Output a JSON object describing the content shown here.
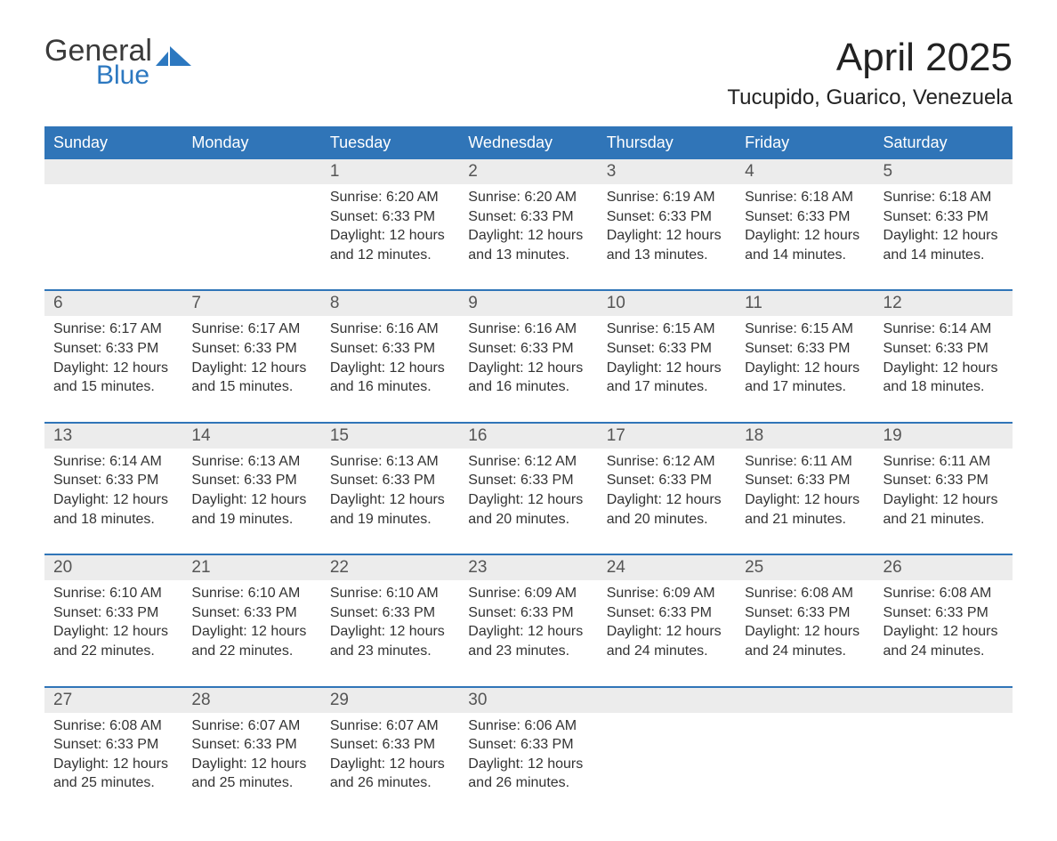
{
  "logo": {
    "top_text": "General",
    "bottom_text": "Blue",
    "icon_color": "#2c78c0"
  },
  "title": "April 2025",
  "location": "Tucupido, Guarico, Venezuela",
  "colors": {
    "header_bg": "#3075b8",
    "header_text": "#ffffff",
    "row_border": "#3075b8",
    "daynum_bg": "#ececec",
    "daynum_text": "#555555",
    "body_text": "#333333",
    "page_bg": "#ffffff"
  },
  "day_headers": [
    "Sunday",
    "Monday",
    "Tuesday",
    "Wednesday",
    "Thursday",
    "Friday",
    "Saturday"
  ],
  "weeks": [
    [
      {
        "blank": true
      },
      {
        "blank": true
      },
      {
        "day": "1",
        "sunrise": "Sunrise: 6:20 AM",
        "sunset": "Sunset: 6:33 PM",
        "daylight": "Daylight: 12 hours and 12 minutes."
      },
      {
        "day": "2",
        "sunrise": "Sunrise: 6:20 AM",
        "sunset": "Sunset: 6:33 PM",
        "daylight": "Daylight: 12 hours and 13 minutes."
      },
      {
        "day": "3",
        "sunrise": "Sunrise: 6:19 AM",
        "sunset": "Sunset: 6:33 PM",
        "daylight": "Daylight: 12 hours and 13 minutes."
      },
      {
        "day": "4",
        "sunrise": "Sunrise: 6:18 AM",
        "sunset": "Sunset: 6:33 PM",
        "daylight": "Daylight: 12 hours and 14 minutes."
      },
      {
        "day": "5",
        "sunrise": "Sunrise: 6:18 AM",
        "sunset": "Sunset: 6:33 PM",
        "daylight": "Daylight: 12 hours and 14 minutes."
      }
    ],
    [
      {
        "day": "6",
        "sunrise": "Sunrise: 6:17 AM",
        "sunset": "Sunset: 6:33 PM",
        "daylight": "Daylight: 12 hours and 15 minutes."
      },
      {
        "day": "7",
        "sunrise": "Sunrise: 6:17 AM",
        "sunset": "Sunset: 6:33 PM",
        "daylight": "Daylight: 12 hours and 15 minutes."
      },
      {
        "day": "8",
        "sunrise": "Sunrise: 6:16 AM",
        "sunset": "Sunset: 6:33 PM",
        "daylight": "Daylight: 12 hours and 16 minutes."
      },
      {
        "day": "9",
        "sunrise": "Sunrise: 6:16 AM",
        "sunset": "Sunset: 6:33 PM",
        "daylight": "Daylight: 12 hours and 16 minutes."
      },
      {
        "day": "10",
        "sunrise": "Sunrise: 6:15 AM",
        "sunset": "Sunset: 6:33 PM",
        "daylight": "Daylight: 12 hours and 17 minutes."
      },
      {
        "day": "11",
        "sunrise": "Sunrise: 6:15 AM",
        "sunset": "Sunset: 6:33 PM",
        "daylight": "Daylight: 12 hours and 17 minutes."
      },
      {
        "day": "12",
        "sunrise": "Sunrise: 6:14 AM",
        "sunset": "Sunset: 6:33 PM",
        "daylight": "Daylight: 12 hours and 18 minutes."
      }
    ],
    [
      {
        "day": "13",
        "sunrise": "Sunrise: 6:14 AM",
        "sunset": "Sunset: 6:33 PM",
        "daylight": "Daylight: 12 hours and 18 minutes."
      },
      {
        "day": "14",
        "sunrise": "Sunrise: 6:13 AM",
        "sunset": "Sunset: 6:33 PM",
        "daylight": "Daylight: 12 hours and 19 minutes."
      },
      {
        "day": "15",
        "sunrise": "Sunrise: 6:13 AM",
        "sunset": "Sunset: 6:33 PM",
        "daylight": "Daylight: 12 hours and 19 minutes."
      },
      {
        "day": "16",
        "sunrise": "Sunrise: 6:12 AM",
        "sunset": "Sunset: 6:33 PM",
        "daylight": "Daylight: 12 hours and 20 minutes."
      },
      {
        "day": "17",
        "sunrise": "Sunrise: 6:12 AM",
        "sunset": "Sunset: 6:33 PM",
        "daylight": "Daylight: 12 hours and 20 minutes."
      },
      {
        "day": "18",
        "sunrise": "Sunrise: 6:11 AM",
        "sunset": "Sunset: 6:33 PM",
        "daylight": "Daylight: 12 hours and 21 minutes."
      },
      {
        "day": "19",
        "sunrise": "Sunrise: 6:11 AM",
        "sunset": "Sunset: 6:33 PM",
        "daylight": "Daylight: 12 hours and 21 minutes."
      }
    ],
    [
      {
        "day": "20",
        "sunrise": "Sunrise: 6:10 AM",
        "sunset": "Sunset: 6:33 PM",
        "daylight": "Daylight: 12 hours and 22 minutes."
      },
      {
        "day": "21",
        "sunrise": "Sunrise: 6:10 AM",
        "sunset": "Sunset: 6:33 PM",
        "daylight": "Daylight: 12 hours and 22 minutes."
      },
      {
        "day": "22",
        "sunrise": "Sunrise: 6:10 AM",
        "sunset": "Sunset: 6:33 PM",
        "daylight": "Daylight: 12 hours and 23 minutes."
      },
      {
        "day": "23",
        "sunrise": "Sunrise: 6:09 AM",
        "sunset": "Sunset: 6:33 PM",
        "daylight": "Daylight: 12 hours and 23 minutes."
      },
      {
        "day": "24",
        "sunrise": "Sunrise: 6:09 AM",
        "sunset": "Sunset: 6:33 PM",
        "daylight": "Daylight: 12 hours and 24 minutes."
      },
      {
        "day": "25",
        "sunrise": "Sunrise: 6:08 AM",
        "sunset": "Sunset: 6:33 PM",
        "daylight": "Daylight: 12 hours and 24 minutes."
      },
      {
        "day": "26",
        "sunrise": "Sunrise: 6:08 AM",
        "sunset": "Sunset: 6:33 PM",
        "daylight": "Daylight: 12 hours and 24 minutes."
      }
    ],
    [
      {
        "day": "27",
        "sunrise": "Sunrise: 6:08 AM",
        "sunset": "Sunset: 6:33 PM",
        "daylight": "Daylight: 12 hours and 25 minutes."
      },
      {
        "day": "28",
        "sunrise": "Sunrise: 6:07 AM",
        "sunset": "Sunset: 6:33 PM",
        "daylight": "Daylight: 12 hours and 25 minutes."
      },
      {
        "day": "29",
        "sunrise": "Sunrise: 6:07 AM",
        "sunset": "Sunset: 6:33 PM",
        "daylight": "Daylight: 12 hours and 26 minutes."
      },
      {
        "day": "30",
        "sunrise": "Sunrise: 6:06 AM",
        "sunset": "Sunset: 6:33 PM",
        "daylight": "Daylight: 12 hours and 26 minutes."
      },
      {
        "blank": true
      },
      {
        "blank": true
      },
      {
        "blank": true
      }
    ]
  ]
}
